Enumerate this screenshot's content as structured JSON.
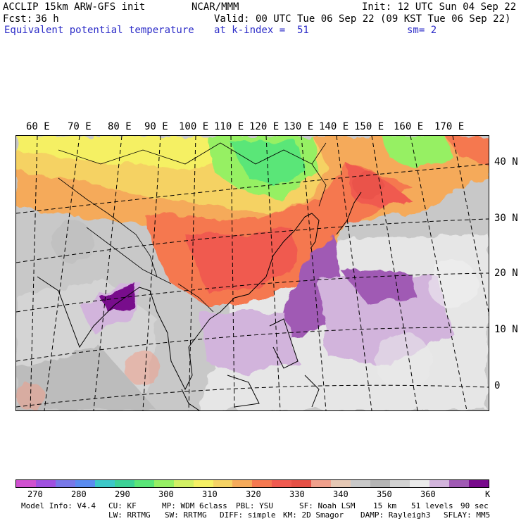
{
  "header": {
    "title_left": "ACCLIP 15km ARW-GFS init",
    "org": "NCAR/MMM",
    "init": "Init: 12 UTC Sun 04 Sep 22",
    "fcst_label": "Fcst:",
    "fcst_value": "36 h",
    "valid": "Valid: 00 UTC Tue 06 Sep 22 (09 KST Tue 06 Sep 22)",
    "field": "Equivalent potential temperature",
    "level": "at k-index =  51",
    "smooth": "sm= 2"
  },
  "map": {
    "lon_labels": [
      "60 E",
      "70 E",
      "80 E",
      "90 E",
      "100 E",
      "110 E",
      "120 E",
      "130 E",
      "140 E",
      "150 E",
      "160 E",
      "170 E"
    ],
    "lat_labels": [
      "40 N",
      "30 N",
      "20 N",
      "10 N",
      "0"
    ]
  },
  "colorbar": {
    "colors": [
      "#d050d0",
      "#a050e0",
      "#7878e8",
      "#5a8cf0",
      "#3cc8c8",
      "#3cd296",
      "#5ae678",
      "#96f064",
      "#d2f064",
      "#f5f064",
      "#f5d264",
      "#f5aa5a",
      "#f57850",
      "#f05a50",
      "#e65046",
      "#f0a08c",
      "#e6c8b4",
      "#c8c8c8",
      "#b4b4b4",
      "#d2d2d2",
      "#ebebeb",
      "#d2b4dc",
      "#a05ab4",
      "#780a8c"
    ],
    "labels": [
      "270",
      "280",
      "290",
      "300",
      "310",
      "320",
      "330",
      "340",
      "350",
      "360"
    ],
    "unit": "K"
  },
  "footer": {
    "line1": [
      "Model Info: V4.4",
      "CU: KF",
      "MP: WDM 6class",
      "PBL: YSU",
      "SF: Noah LSM",
      "15 km",
      "51 levels",
      "90 sec"
    ],
    "line2": [
      "LW: RRTMG",
      "SW: RRTMG",
      "DIFF: simple",
      "KM: 2D Smagor",
      "DAMP: Rayleigh3",
      "SFLAY: MM5"
    ]
  }
}
